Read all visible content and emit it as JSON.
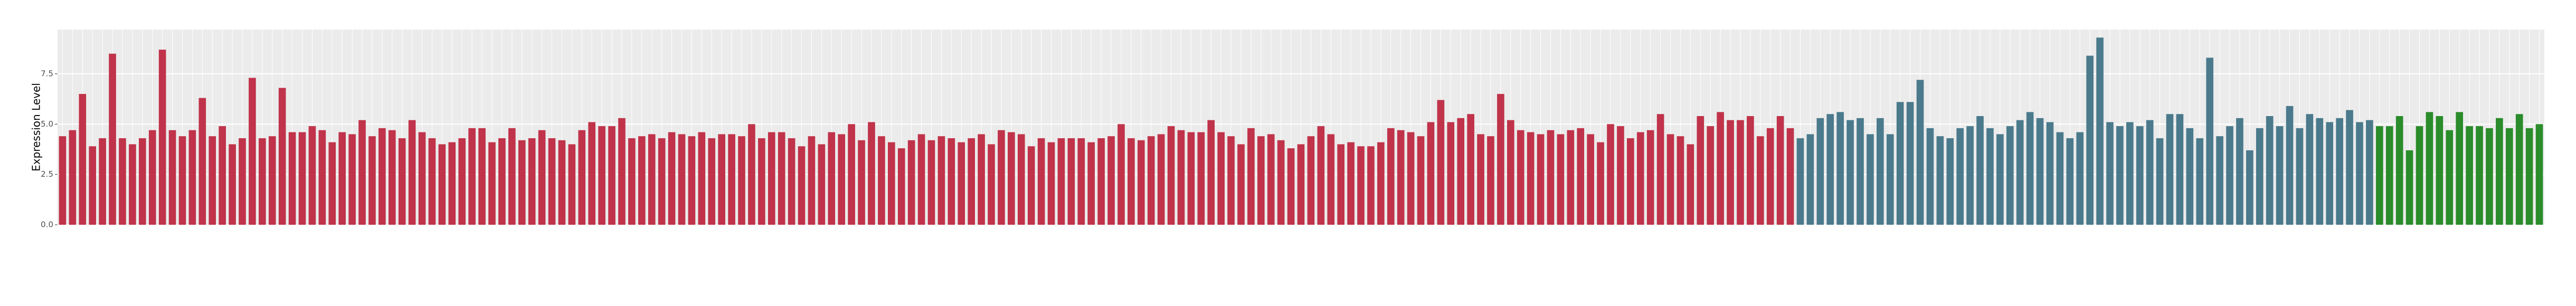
{
  "chart_data": {
    "type": "bar",
    "y_label": "Expression Level",
    "ylim": [
      0,
      9.7
    ],
    "yticks": [
      {
        "value": 0,
        "label": "0.0"
      },
      2.5,
      {
        "value": 5,
        "label": "5.0"
      },
      7.5
    ],
    "grid": true,
    "series": [
      {
        "color": "#c0334a",
        "values": [
          4.4,
          4.7,
          6.5,
          3.9,
          4.3,
          8.5,
          4.3,
          4.0,
          4.3,
          4.7,
          8.7,
          4.7,
          4.4,
          4.7,
          6.3,
          4.4,
          4.9,
          4.0,
          4.3,
          7.3,
          4.3,
          4.4,
          6.8,
          4.6,
          4.6,
          4.9,
          4.7,
          4.1,
          4.6,
          4.5,
          5.2,
          4.4,
          4.8,
          4.7,
          4.3,
          5.2,
          4.6,
          4.3,
          4.0,
          4.1,
          4.3,
          4.8,
          4.8,
          4.1,
          4.3,
          4.8,
          4.2,
          4.3,
          4.7,
          4.3,
          4.2,
          4.0,
          4.7,
          5.1,
          4.9,
          4.9,
          5.3,
          4.3,
          4.4,
          4.5,
          4.3,
          4.6,
          4.5,
          4.4,
          4.6,
          4.3,
          4.5,
          4.5,
          4.4,
          5.0,
          4.3,
          4.6,
          4.6,
          4.3,
          3.9,
          4.4,
          4.0,
          4.6,
          4.5,
          5.0,
          4.2,
          5.1,
          4.4,
          4.1,
          3.8,
          4.2,
          4.5,
          4.2,
          4.4,
          4.3,
          4.1,
          4.3,
          4.5,
          4.0,
          4.7,
          4.6,
          4.5,
          3.9,
          4.3,
          4.1,
          4.3,
          4.3,
          4.3,
          4.1,
          4.3,
          4.4,
          5.0,
          4.3,
          4.2,
          4.4,
          4.5,
          4.9,
          4.7,
          4.6,
          4.6,
          5.2,
          4.6,
          4.4,
          4.0,
          4.8,
          4.4,
          4.5,
          4.2,
          3.8,
          4.0,
          4.4,
          4.9,
          4.5,
          4.0,
          4.1,
          3.9,
          3.9,
          4.1,
          4.8,
          4.7,
          4.6,
          4.4,
          5.1,
          6.2,
          5.1,
          5.3,
          5.5,
          4.5,
          4.4,
          6.5,
          5.2,
          4.7,
          4.6,
          4.5,
          4.7,
          4.5,
          4.7,
          4.8,
          4.5,
          4.1,
          5.0,
          4.9,
          4.3,
          4.6,
          4.7,
          5.5,
          4.5,
          4.4,
          4.0,
          5.4,
          4.9,
          5.6,
          5.2,
          5.2,
          5.4,
          4.4,
          4.8,
          5.4,
          4.8
        ]
      },
      {
        "color": "#4a7a8c",
        "values": [
          4.3,
          4.5,
          5.3,
          5.5,
          5.6,
          5.2,
          5.3,
          4.5,
          5.3,
          4.5,
          6.1,
          6.1,
          7.2,
          4.8,
          4.4,
          4.3,
          4.8,
          4.9,
          5.4,
          4.8,
          4.5,
          4.9,
          5.2,
          5.6,
          5.3,
          5.1,
          4.6,
          4.3,
          4.6,
          8.4,
          9.3,
          5.1,
          4.9,
          5.1,
          4.9,
          5.2,
          4.3,
          5.5,
          5.5,
          4.8,
          4.3,
          8.3,
          4.4,
          4.9,
          5.3,
          3.7,
          4.8,
          5.4,
          4.9,
          5.9,
          4.8,
          5.5,
          5.3,
          5.1,
          5.3,
          5.7,
          5.1,
          5.2
        ]
      },
      {
        "color": "#2a8c2a",
        "values": [
          4.9,
          4.9,
          5.4,
          3.7,
          4.9,
          5.6,
          5.4,
          4.7,
          5.6,
          4.9,
          4.9,
          4.8,
          5.3,
          4.8,
          5.5,
          4.8,
          5.0
        ]
      }
    ]
  }
}
